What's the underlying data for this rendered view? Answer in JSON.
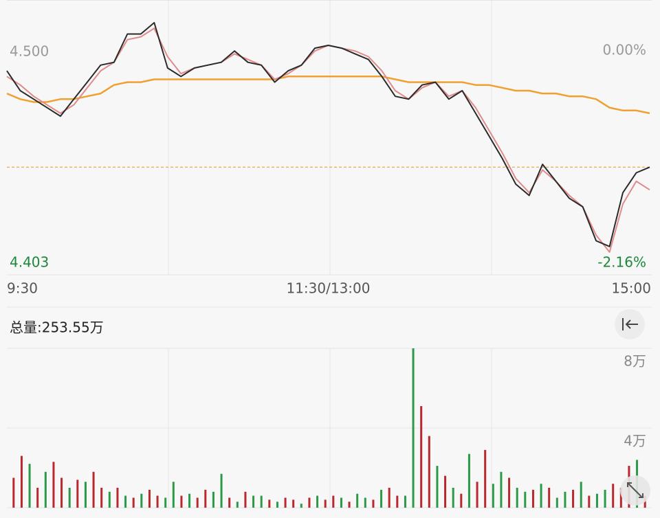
{
  "chart_data": [
    {
      "type": "line",
      "x": [
        0,
        5,
        10,
        15,
        20,
        25,
        30,
        35,
        40,
        45,
        50,
        55,
        60,
        65,
        70,
        75,
        80,
        85,
        90,
        95,
        100,
        105,
        110,
        115,
        120,
        125,
        130,
        135,
        140,
        145,
        150,
        155,
        160,
        165,
        170,
        175,
        180,
        185,
        190,
        195,
        200,
        205,
        210,
        215,
        220,
        225,
        230,
        235,
        240
      ],
      "xlim": [
        0,
        240
      ],
      "xticks": [
        {
          "value": 0,
          "label": "9:30"
        },
        {
          "value": 120,
          "label": "11:30/13:00"
        },
        {
          "value": 240,
          "label": "15:00"
        }
      ],
      "ylim": [
        4.403,
        4.5
      ],
      "yticks": [
        {
          "value": 4.5,
          "label": "4.500"
        },
        {
          "value": 4.403,
          "label": "4.403"
        }
      ],
      "y2lim": [
        -2.16,
        0
      ],
      "y2ticks": [
        {
          "value": 0,
          "label": "0.00%"
        },
        {
          "value": -2.16,
          "label": "-2.16%"
        }
      ],
      "reference_line": {
        "value": 4.441,
        "color": "#f0a030"
      },
      "series": [
        {
          "name": "avg",
          "color": "#f0a030",
          "width": 2.5,
          "values": [
            4.467,
            4.465,
            4.464,
            4.464,
            4.465,
            4.465,
            4.466,
            4.467,
            4.47,
            4.471,
            4.471,
            4.472,
            4.472,
            4.472,
            4.472,
            4.472,
            4.472,
            4.472,
            4.472,
            4.472,
            4.472,
            4.473,
            4.473,
            4.473,
            4.473,
            4.473,
            4.473,
            4.473,
            4.473,
            4.472,
            4.471,
            4.471,
            4.471,
            4.471,
            4.471,
            4.47,
            4.47,
            4.469,
            4.468,
            4.468,
            4.467,
            4.467,
            4.466,
            4.466,
            4.465,
            4.462,
            4.461,
            4.461,
            4.46
          ]
        },
        {
          "name": "ma",
          "color": "#e08a8a",
          "width": 2,
          "values": [
            4.473,
            4.47,
            4.466,
            4.463,
            4.46,
            4.463,
            4.469,
            4.475,
            4.478,
            4.486,
            4.487,
            4.49,
            4.48,
            4.474,
            4.476,
            4.477,
            4.478,
            4.481,
            4.479,
            4.477,
            4.472,
            4.474,
            4.477,
            4.482,
            4.484,
            4.483,
            4.482,
            4.48,
            4.475,
            4.468,
            4.465,
            4.469,
            4.471,
            4.466,
            4.468,
            4.462,
            4.454,
            4.446,
            4.437,
            4.432,
            4.44,
            4.436,
            4.431,
            4.427,
            4.417,
            4.411,
            4.428,
            4.436,
            4.433
          ]
        },
        {
          "name": "price",
          "color": "#2a2a2a",
          "width": 2,
          "values": [
            4.475,
            4.468,
            4.465,
            4.462,
            4.459,
            4.465,
            4.471,
            4.477,
            4.478,
            4.488,
            4.488,
            4.492,
            4.476,
            4.473,
            4.476,
            4.477,
            4.478,
            4.482,
            4.478,
            4.477,
            4.471,
            4.475,
            4.477,
            4.483,
            4.484,
            4.483,
            4.481,
            4.479,
            4.473,
            4.466,
            4.465,
            4.47,
            4.471,
            4.465,
            4.468,
            4.46,
            4.452,
            4.444,
            4.435,
            4.431,
            4.442,
            4.436,
            4.43,
            4.427,
            4.415,
            4.413,
            4.432,
            4.439,
            4.441
          ]
        }
      ]
    },
    {
      "type": "bar",
      "title": "总量:253.55万",
      "ylim": [
        0,
        8
      ],
      "yticks": [
        {
          "value": 8,
          "label": "8万"
        },
        {
          "value": 4,
          "label": "4万"
        }
      ],
      "up_color": "#b8282e",
      "down_color": "#2a9a48",
      "values": [
        1.5,
        2.6,
        2.2,
        1.0,
        1.8,
        2.3,
        1.5,
        1.0,
        1.4,
        1.3,
        1.8,
        1.0,
        0.8,
        1.0,
        0.6,
        0.5,
        0.7,
        0.9,
        0.6,
        0.5,
        1.3,
        0.6,
        0.7,
        0.5,
        0.9,
        0.8,
        1.7,
        0.5,
        0.3,
        0.8,
        0.6,
        0.6,
        0.4,
        0.3,
        0.5,
        0.4,
        0.2,
        0.5,
        0.6,
        0.4,
        0.6,
        0.5,
        0.3,
        0.7,
        0.5,
        0.4,
        0.9,
        1.0,
        0.6,
        0.6,
        8.0,
        5.1,
        3.6,
        2.1,
        1.6,
        1.0,
        0.7,
        2.7,
        1.3,
        2.9,
        1.2,
        1.8,
        1.5,
        1.0,
        0.8,
        0.9,
        1.2,
        1.0,
        0.5,
        0.8,
        0.9,
        1.3,
        0.6,
        0.7,
        0.9,
        1.2,
        1.0,
        2.1,
        2.4,
        0.6
      ],
      "up": [
        1,
        1,
        0,
        1,
        0,
        1,
        1,
        0,
        1,
        0,
        1,
        1,
        0,
        1,
        0,
        1,
        0,
        1,
        1,
        0,
        0,
        1,
        0,
        1,
        1,
        0,
        0,
        1,
        0,
        1,
        0,
        0,
        1,
        0,
        1,
        1,
        0,
        1,
        0,
        1,
        1,
        0,
        1,
        0,
        0,
        1,
        0,
        1,
        1,
        0,
        0,
        1,
        1,
        0,
        1,
        0,
        1,
        0,
        1,
        1,
        0,
        0,
        1,
        0,
        0,
        1,
        0,
        1,
        0,
        0,
        1,
        0,
        1,
        0,
        0,
        1,
        1,
        1,
        0,
        1
      ]
    }
  ]
}
